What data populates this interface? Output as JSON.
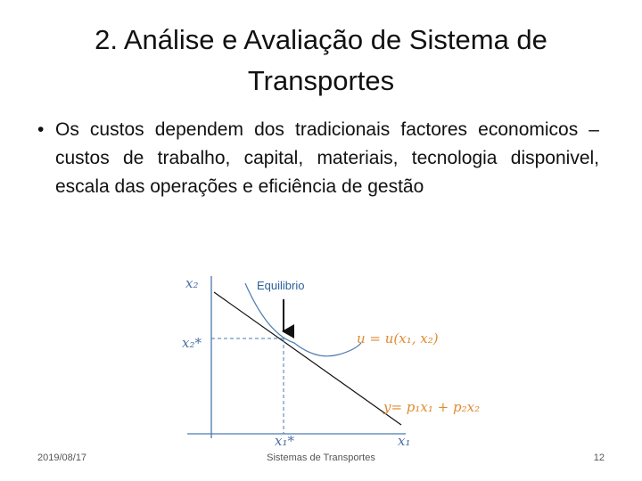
{
  "header": {
    "title": "2. Análise e Avaliação de Sistema de Transportes"
  },
  "body": {
    "bullets": [
      "Os custos dependem dos tradicionais factores economicos – custos de trabalho, capital, materiais, tecnologia disponivel, escala das operações e eficiência de gestão"
    ]
  },
  "diagram": {
    "y_axis_label": "x₂",
    "y_star_label": "x₂*",
    "x_axis_label": "x₁",
    "x_star_label": "x₁*",
    "equilibrium_label": "Equilibrio",
    "curve_label": "u = u(x₁, x₂)",
    "line_label": "y= p₁x₁ + p₂x₂"
  },
  "footer": {
    "date": "2019/08/17",
    "center": "Sistemas de Transportes",
    "page": "12"
  }
}
